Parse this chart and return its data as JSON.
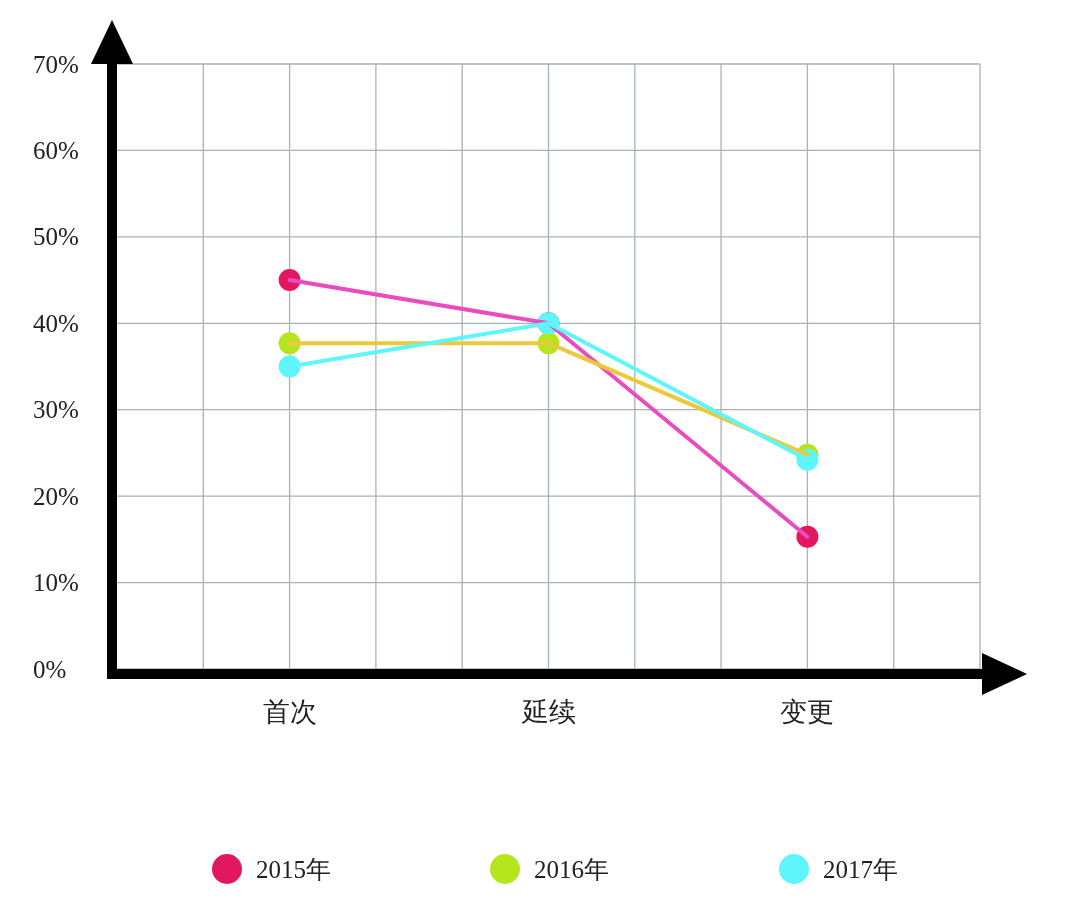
{
  "chart_data": {
    "type": "line",
    "categories": [
      "首次",
      "延续",
      "变更"
    ],
    "series": [
      {
        "name": "2015年",
        "color": "#e84cbf",
        "colors": [
          "#e3175f",
          "#e3175f",
          "#e3175f"
        ],
        "values": [
          45,
          40,
          15.3
        ]
      },
      {
        "name": "2016年",
        "color": "#ebc93a",
        "colors": [
          "#b5e61d",
          "#b5e61d",
          "#b5e61d"
        ],
        "values": [
          37.7,
          37.7,
          24.8
        ]
      },
      {
        "name": "2017年",
        "color": "#5ef6fc",
        "colors": [
          "#5ef6fc",
          "#5ef6fc",
          "#5ef6fc"
        ],
        "values": [
          35,
          40,
          24.2
        ]
      }
    ],
    "ylim": [
      0,
      70
    ],
    "yticks": [
      {
        "value": 0,
        "label": "0%"
      },
      {
        "value": 10,
        "label": "10%"
      },
      {
        "value": 20,
        "label": "20%"
      },
      {
        "value": 30,
        "label": "30%"
      },
      {
        "value": 40,
        "label": "40%"
      },
      {
        "value": 50,
        "label": "50%"
      },
      {
        "value": 60,
        "label": "60%"
      },
      {
        "value": 70,
        "label": "70%"
      }
    ],
    "grid": true,
    "legend": "bottom",
    "marker": "circle",
    "line_style": "solid"
  }
}
